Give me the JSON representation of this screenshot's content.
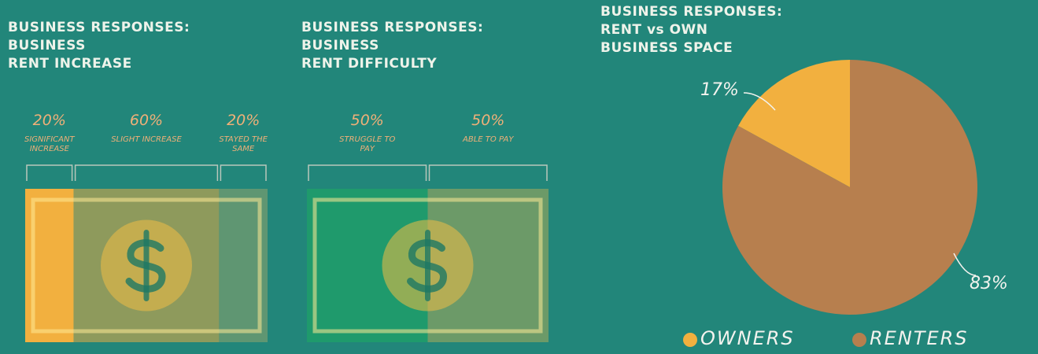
{
  "chart_data": [
    {
      "type": "bill",
      "title": [
        "BUSINESS RESPONSES:",
        "BUSINESS",
        "RENT INCREASE"
      ],
      "categories": [
        "SIGNIFICANT INCREASE",
        "SLIGHT INCREASE",
        "STAYED THE SAME"
      ],
      "values": [
        20,
        60,
        20
      ],
      "value_labels": [
        "20%",
        "60%",
        "20%"
      ],
      "colors": [
        "#f2b03f",
        "#8e9a5c",
        "#5f9672"
      ]
    },
    {
      "type": "bill",
      "title": [
        "BUSINESS RESPONSES:",
        "BUSINESS",
        "RENT DIFFICULTY"
      ],
      "categories": [
        "STRUGGLE TO PAY",
        "ABLE TO PAY"
      ],
      "values": [
        50,
        50
      ],
      "value_labels": [
        "50%",
        "50%"
      ],
      "colors": [
        "#1f9a6c",
        "#6c9a68"
      ]
    },
    {
      "type": "pie",
      "title": [
        "BUSINESS RESPONSES:",
        "RENT vs OWN",
        "BUSINESS SPACE"
      ],
      "categories": [
        "OWNERS",
        "RENTERS"
      ],
      "values": [
        17,
        83
      ],
      "value_labels": [
        "17%",
        "83%"
      ],
      "colors": [
        "#f2b03f",
        "#b77f4e"
      ]
    }
  ]
}
